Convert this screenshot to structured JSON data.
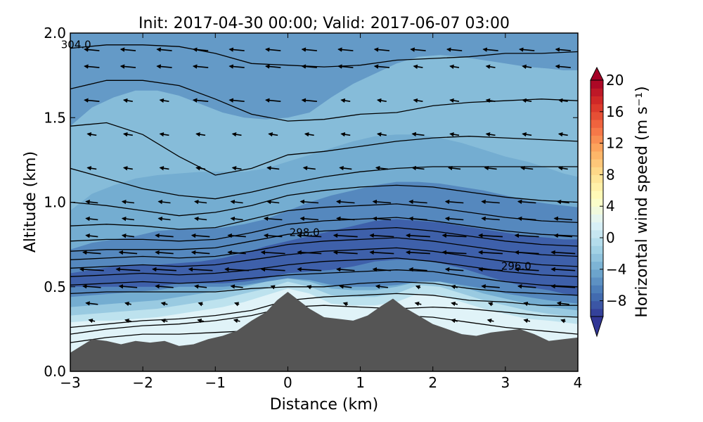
{
  "chart_data": {
    "type": "contour",
    "title": "Init: 2017-04-30 00:00; Valid: 2017-06-07 03:00",
    "xlabel": "Distance (km)",
    "ylabel": "Altitude (km)",
    "xlim": [
      -3,
      4
    ],
    "ylim": [
      0,
      2
    ],
    "xticks": [
      "−3",
      "−2",
      "−1",
      "0",
      "1",
      "2",
      "3",
      "4"
    ],
    "xtick_values": [
      -3,
      -2,
      -1,
      0,
      1,
      2,
      3,
      4
    ],
    "yticks": [
      "0.0",
      "0.5",
      "1.0",
      "1.5",
      "2.0"
    ],
    "ytick_values": [
      0,
      0.5,
      1,
      1.5,
      2
    ],
    "colorbar": {
      "label": "Horizontal wind speed (m s⁻¹)",
      "range": [
        -10,
        20
      ],
      "tick_labels": [
        "20",
        "16",
        "12",
        "8",
        "4",
        "0",
        "−4",
        "−8"
      ],
      "tick_values": [
        20,
        16,
        12,
        8,
        4,
        0,
        -4,
        -8
      ],
      "colormap": [
        "#313695",
        "#4575b4",
        "#74add1",
        "#abd9e9",
        "#e0f3f8",
        "#ffffbf",
        "#fee090",
        "#fdae61",
        "#f46d43",
        "#d73027",
        "#a50026"
      ]
    },
    "terrain": {
      "color": "#555555",
      "x": [
        -3,
        -2.85,
        -2.7,
        -2.5,
        -2.3,
        -2.1,
        -1.9,
        -1.7,
        -1.5,
        -1.3,
        -1.1,
        -0.9,
        -0.7,
        -0.5,
        -0.3,
        -0.15,
        0,
        0.15,
        0.3,
        0.5,
        0.7,
        0.9,
        1.1,
        1.3,
        1.45,
        1.6,
        1.8,
        2.0,
        2.2,
        2.4,
        2.6,
        2.8,
        3.0,
        3.2,
        3.4,
        3.6,
        3.8,
        4.0
      ],
      "y": [
        0.11,
        0.15,
        0.19,
        0.18,
        0.16,
        0.18,
        0.17,
        0.18,
        0.15,
        0.16,
        0.19,
        0.21,
        0.24,
        0.3,
        0.35,
        0.42,
        0.47,
        0.42,
        0.37,
        0.32,
        0.31,
        0.3,
        0.33,
        0.39,
        0.43,
        0.38,
        0.33,
        0.28,
        0.25,
        0.22,
        0.21,
        0.23,
        0.24,
        0.25,
        0.22,
        0.18,
        0.19,
        0.2
      ]
    },
    "fill_bands": [
      {
        "speed": 2,
        "top": [
          0.29,
          0.3,
          0.3,
          0.31,
          0.32,
          0.34,
          0.36,
          0.38,
          0.41,
          0.45,
          0.49,
          0.46,
          0.4,
          0.39,
          0.39,
          0.41,
          0.46,
          0.45,
          0.41,
          0.37,
          0.34,
          0.31,
          0.3,
          0.29,
          0.28
        ]
      },
      {
        "speed": 0,
        "top": [
          0.33,
          0.34,
          0.35,
          0.36,
          0.37,
          0.39,
          0.41,
          0.43,
          0.46,
          0.49,
          0.53,
          0.5,
          0.45,
          0.44,
          0.44,
          0.46,
          0.51,
          0.5,
          0.46,
          0.42,
          0.39,
          0.36,
          0.34,
          0.33,
          0.32
        ]
      },
      {
        "speed": -2,
        "top": [
          0.38,
          0.39,
          0.4,
          0.41,
          0.42,
          0.44,
          0.46,
          0.48,
          0.5,
          0.53,
          0.55,
          0.53,
          0.49,
          0.48,
          0.48,
          0.5,
          0.53,
          0.53,
          0.5,
          0.46,
          0.43,
          0.4,
          0.38,
          0.37,
          0.36
        ]
      },
      {
        "speed": -4,
        "top": [
          0.44,
          0.45,
          0.46,
          0.47,
          0.48,
          0.5,
          0.5,
          0.5,
          0.51,
          0.53,
          0.55,
          0.54,
          0.51,
          0.5,
          0.5,
          0.51,
          0.53,
          0.53,
          0.51,
          0.49,
          0.46,
          0.44,
          0.42,
          0.41,
          0.4
        ]
      },
      {
        "speed": -6,
        "top": [
          0.5,
          0.5,
          0.5,
          0.5,
          0.5,
          0.52,
          0.52,
          0.52,
          0.53,
          0.55,
          0.58,
          0.59,
          0.6,
          0.62,
          0.65,
          0.66,
          0.66,
          0.64,
          0.61,
          0.57,
          0.53,
          0.5,
          0.48,
          0.46,
          0.45
        ]
      },
      {
        "speed": -8,
        "top": [
          0.58,
          0.6,
          0.62,
          0.63,
          0.63,
          0.64,
          0.65,
          0.67,
          0.7,
          0.74,
          0.77,
          0.8,
          0.83,
          0.86,
          0.89,
          0.9,
          0.89,
          0.88,
          0.86,
          0.84,
          0.82,
          0.8,
          0.79,
          0.78,
          0.78
        ]
      },
      {
        "speed": -6,
        "top": [
          0.72,
          0.76,
          0.78,
          0.8,
          0.83,
          0.84,
          0.84,
          0.85,
          0.87,
          0.9,
          0.95,
          1.0,
          1.04,
          1.07,
          1.1,
          1.12,
          1.12,
          1.11,
          1.09,
          1.07,
          1.04,
          1.01,
          0.99,
          0.98,
          0.97
        ]
      },
      {
        "speed": -4,
        "top": [
          0.95,
          1.05,
          1.1,
          1.14,
          1.16,
          1.17,
          1.18,
          1.18,
          1.18,
          1.2,
          1.24,
          1.28,
          1.32,
          1.36,
          1.39,
          1.4,
          1.4,
          1.38,
          1.35,
          1.31,
          1.27,
          1.24,
          1.2,
          1.17,
          1.15
        ]
      },
      {
        "speed": -3,
        "top": [
          1.45,
          1.56,
          1.62,
          1.66,
          1.66,
          1.63,
          1.58,
          1.53,
          1.5,
          1.49,
          1.5,
          1.53,
          1.62,
          1.7,
          1.76,
          1.82,
          1.86,
          1.87,
          1.86,
          1.84,
          1.82,
          1.8,
          1.79,
          1.78,
          1.78
        ]
      },
      {
        "speed": -5,
        "top": [
          2,
          2,
          2,
          2,
          2,
          2,
          2,
          2,
          2,
          2,
          2,
          2,
          2,
          2,
          2,
          2,
          2,
          2,
          2,
          2,
          2,
          2,
          2,
          2,
          2
        ]
      }
    ],
    "fill_band_x": [
      -3,
      -2.7,
      -2.4,
      -2.1,
      -1.8,
      -1.5,
      -1.2,
      -0.9,
      -0.6,
      -0.3,
      0,
      0.3,
      0.6,
      0.9,
      1.2,
      1.5,
      1.8,
      2.1,
      2.4,
      2.7,
      3.0,
      3.3,
      3.6,
      3.8,
      4.0
    ],
    "contours_x": [
      -3,
      -2.5,
      -2,
      -1.5,
      -1,
      -0.5,
      0,
      0.5,
      1,
      1.5,
      2,
      2.5,
      3,
      3.5,
      4
    ],
    "contours": [
      [
        0.17,
        0.2,
        0.22,
        0.22,
        0.23,
        0.24,
        0.27,
        0.28,
        0.3,
        0.33,
        0.32,
        0.29,
        0.26,
        0.24,
        0.22
      ],
      [
        0.22,
        0.25,
        0.27,
        0.28,
        0.3,
        0.33,
        0.38,
        0.39,
        0.38,
        0.37,
        0.38,
        0.37,
        0.35,
        0.33,
        0.32
      ],
      [
        0.26,
        0.28,
        0.3,
        0.31,
        0.33,
        0.36,
        0.42,
        0.44,
        0.45,
        0.46,
        0.45,
        0.42,
        0.41,
        0.39,
        0.39
      ],
      [
        0.46,
        0.47,
        0.47,
        0.47,
        0.47,
        0.49,
        0.5,
        0.5,
        0.52,
        0.53,
        0.52,
        0.49,
        0.47,
        0.46,
        0.45
      ],
      [
        0.51,
        0.52,
        0.53,
        0.52,
        0.53,
        0.55,
        0.57,
        0.58,
        0.59,
        0.6,
        0.59,
        0.56,
        0.53,
        0.51,
        0.5
      ],
      [
        0.56,
        0.57,
        0.58,
        0.57,
        0.58,
        0.6,
        0.63,
        0.65,
        0.66,
        0.67,
        0.65,
        0.62,
        0.59,
        0.57,
        0.56
      ],
      [
        0.61,
        0.62,
        0.63,
        0.62,
        0.63,
        0.66,
        0.69,
        0.71,
        0.72,
        0.73,
        0.71,
        0.68,
        0.65,
        0.63,
        0.62
      ],
      [
        0.66,
        0.67,
        0.68,
        0.67,
        0.68,
        0.71,
        0.75,
        0.77,
        0.78,
        0.79,
        0.77,
        0.74,
        0.71,
        0.69,
        0.68
      ],
      [
        0.71,
        0.72,
        0.72,
        0.72,
        0.73,
        0.77,
        0.81,
        0.83,
        0.84,
        0.85,
        0.83,
        0.8,
        0.77,
        0.75,
        0.74
      ],
      [
        0.77,
        0.78,
        0.78,
        0.77,
        0.78,
        0.82,
        0.87,
        0.89,
        0.9,
        0.91,
        0.89,
        0.86,
        0.83,
        0.81,
        0.8
      ],
      [
        0.86,
        0.87,
        0.86,
        0.84,
        0.85,
        0.9,
        0.95,
        0.97,
        0.98,
        0.99,
        0.97,
        0.94,
        0.91,
        0.89,
        0.88
      ],
      [
        1.0,
        0.98,
        0.95,
        0.92,
        0.94,
        0.98,
        1.04,
        1.07,
        1.09,
        1.1,
        1.09,
        1.06,
        1.03,
        1.01,
        1.0
      ],
      [
        1.2,
        1.14,
        1.08,
        1.04,
        1.02,
        1.06,
        1.11,
        1.15,
        1.18,
        1.2,
        1.21,
        1.21,
        1.21,
        1.21,
        1.21
      ],
      [
        1.45,
        1.47,
        1.4,
        1.27,
        1.16,
        1.2,
        1.28,
        1.3,
        1.33,
        1.36,
        1.38,
        1.39,
        1.38,
        1.37,
        1.36
      ],
      [
        1.67,
        1.72,
        1.72,
        1.69,
        1.61,
        1.52,
        1.48,
        1.49,
        1.52,
        1.53,
        1.57,
        1.59,
        1.6,
        1.61,
        1.6
      ],
      [
        1.91,
        1.93,
        1.93,
        1.92,
        1.88,
        1.82,
        1.81,
        1.8,
        1.81,
        1.84,
        1.85,
        1.86,
        1.88,
        1.88,
        1.89
      ]
    ],
    "contour_labels": [
      {
        "text": "304.0",
        "x": -2.92,
        "y": 1.91
      },
      {
        "text": "298.0",
        "x": 0.23,
        "y": 0.8
      },
      {
        "text": "296.0",
        "x": 3.15,
        "y": 0.6
      }
    ],
    "wind_vectors": {
      "x": [
        -2.7,
        -2.2,
        -1.7,
        -1.2,
        -0.7,
        -0.2,
        0.3,
        0.8,
        1.3,
        1.8,
        2.3,
        2.8,
        3.3,
        3.8
      ],
      "y": [
        0.3,
        0.4,
        0.5,
        0.6,
        0.7,
        0.8,
        0.9,
        1.0,
        1.2,
        1.4,
        1.6,
        1.8,
        1.9
      ]
    }
  }
}
